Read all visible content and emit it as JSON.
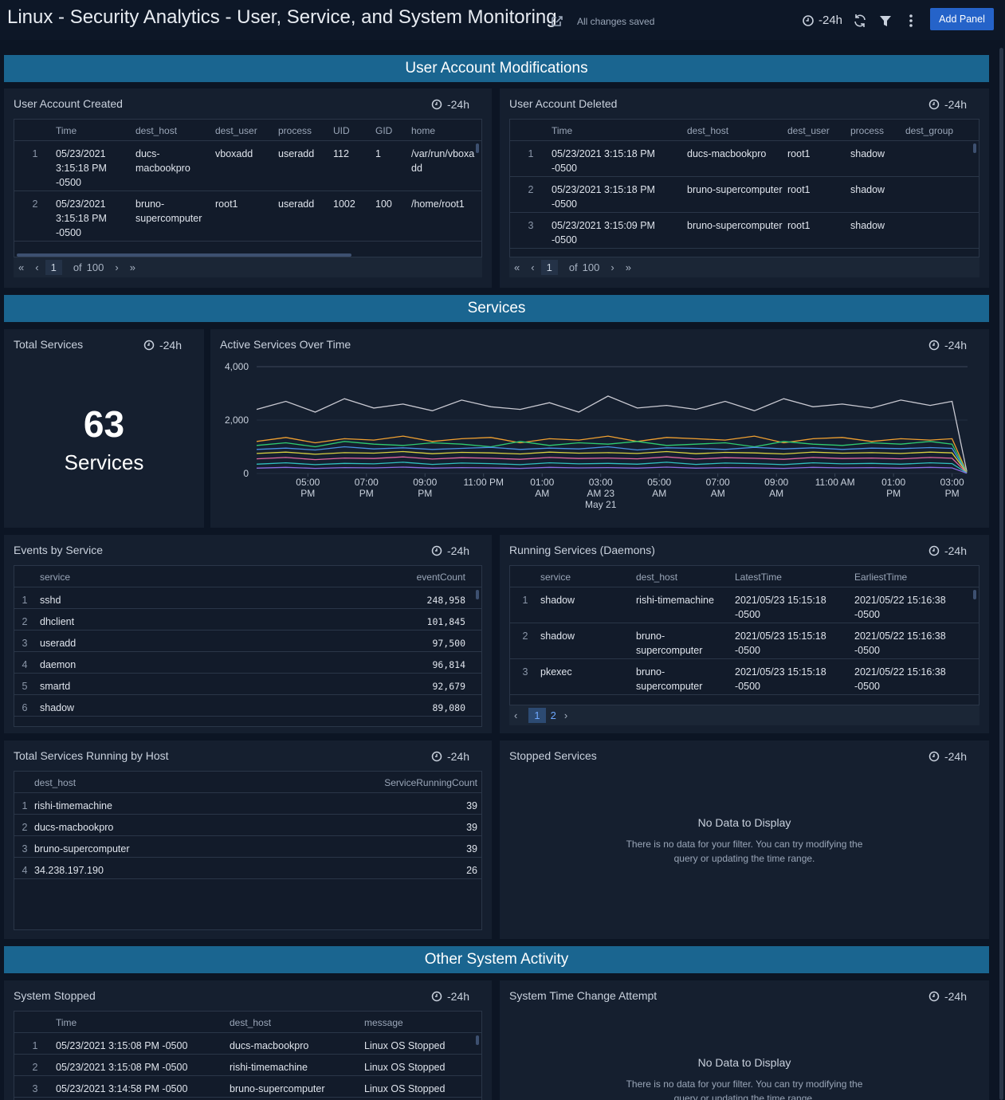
{
  "header": {
    "title": "Linux - Security Analytics - User, Service, and System Monitoring",
    "status": "All changes saved",
    "time_range": "-24h",
    "add_panel": "Add Panel"
  },
  "sections": [
    "User Account Modifications",
    "Services",
    "Other System Activity"
  ],
  "panels": {
    "user_created": {
      "title": "User Account Created",
      "time_range": "-24h",
      "columns": [
        "Time",
        "dest_host",
        "dest_user",
        "process",
        "UID",
        "GID",
        "home"
      ],
      "rows": [
        [
          1,
          "05/23/2021 3:15:18 PM -0500",
          "ducs-macbookpro",
          "vboxadd",
          "useradd",
          "112",
          "1",
          "/var/run/vboxadd"
        ],
        [
          2,
          "05/23/2021 3:15:18 PM -0500",
          "bruno-supercomputer",
          "root1",
          "useradd",
          "1002",
          "100",
          "/home/root1"
        ]
      ],
      "pager": {
        "page": 1,
        "of": "of",
        "total": 100
      }
    },
    "user_deleted": {
      "title": "User Account Deleted",
      "time_range": "-24h",
      "columns": [
        "Time",
        "dest_host",
        "dest_user",
        "process",
        "dest_group"
      ],
      "rows": [
        [
          1,
          "05/23/2021 3:15:18 PM -0500",
          "ducs-macbookpro",
          "root1",
          "shadow",
          ""
        ],
        [
          2,
          "05/23/2021 3:15:18 PM -0500",
          "bruno-supercomputer",
          "root1",
          "shadow",
          ""
        ],
        [
          3,
          "05/23/2021 3:15:09 PM -0500",
          "bruno-supercomputer",
          "root1",
          "shadow",
          ""
        ]
      ],
      "pager": {
        "page": 1,
        "of": "of",
        "total": 100
      }
    },
    "total_services": {
      "title": "Total Services",
      "time_range": "-24h",
      "value": 63,
      "unit": "Services"
    },
    "events_by_service": {
      "title": "Events by Service",
      "time_range": "-24h",
      "columns": [
        "service",
        "eventCount"
      ],
      "rows": [
        [
          1,
          "sshd",
          "248,958"
        ],
        [
          2,
          "dhclient",
          "101,845"
        ],
        [
          3,
          "useradd",
          "97,500"
        ],
        [
          4,
          "daemon",
          "96,814"
        ],
        [
          5,
          "smartd",
          "92,679"
        ],
        [
          6,
          "shadow",
          "89,080"
        ]
      ]
    },
    "running_services": {
      "title": "Running Services (Daemons)",
      "time_range": "-24h",
      "columns": [
        "service",
        "dest_host",
        "LatestTime",
        "EarliestTime"
      ],
      "rows": [
        [
          1,
          "shadow",
          "rishi-timemachine",
          "2021/05/23 15:15:18 -0500",
          "2021/05/22 15:16:38 -0500"
        ],
        [
          2,
          "shadow",
          "bruno-supercomputer",
          "2021/05/23 15:15:18 -0500",
          "2021/05/22 15:16:38 -0500"
        ],
        [
          3,
          "pkexec",
          "bruno-supercomputer",
          "2021/05/23 15:15:18 -0500",
          "2021/05/22 15:16:38 -0500"
        ]
      ],
      "pages": [
        1,
        2
      ]
    },
    "services_by_host": {
      "title": "Total Services Running by Host",
      "time_range": "-24h",
      "columns": [
        "dest_host",
        "ServiceRunningCount"
      ],
      "rows": [
        [
          1,
          "rishi-timemachine",
          "39"
        ],
        [
          2,
          "ducs-macbookpro",
          "39"
        ],
        [
          3,
          "bruno-supercomputer",
          "39"
        ],
        [
          4,
          "34.238.197.190",
          "26"
        ]
      ]
    },
    "stopped_services": {
      "title": "Stopped Services",
      "time_range": "-24h",
      "empty_title": "No Data to Display",
      "empty_message": "There is no data for your filter. You can try modifying the query or updating the time range."
    },
    "system_stopped": {
      "title": "System Stopped",
      "time_range": "-24h",
      "columns": [
        "Time",
        "dest_host",
        "message"
      ],
      "rows": [
        [
          1,
          "05/23/2021 3:15:08 PM -0500",
          "ducs-macbookpro",
          "Linux OS Stopped"
        ],
        [
          2,
          "05/23/2021 3:15:08 PM -0500",
          "rishi-timemachine",
          "Linux OS Stopped"
        ],
        [
          3,
          "05/23/2021 3:14:58 PM -0500",
          "bruno-supercomputer",
          "Linux OS Stopped"
        ]
      ]
    },
    "time_change": {
      "title": "System Time Change Attempt",
      "time_range": "-24h",
      "empty_title": "No Data to Display",
      "empty_message": "There is no data for your filter. You can try modifying the query or updating the time range."
    }
  },
  "chart_data": {
    "type": "line",
    "title": "Active Services Over Time",
    "time_range": "-24h",
    "x": [
      15.25,
      16.25,
      17.25,
      18.25,
      19.25,
      20.25,
      21.25,
      22.25,
      23.25,
      24.25,
      25.25,
      26.25,
      27.25,
      28.25,
      29.25,
      30.25,
      31.25,
      32.25,
      33.25,
      34.25,
      35.25,
      36.25,
      37.25,
      38.25,
      39.0,
      39.5
    ],
    "xlim": [
      15.25,
      39.5
    ],
    "xticks": [
      {
        "value": 17,
        "label": "05:00\nPM"
      },
      {
        "value": 19,
        "label": "07:00\nPM"
      },
      {
        "value": 21,
        "label": "09:00\nPM"
      },
      {
        "value": 23,
        "label": "11:00 PM"
      },
      {
        "value": 25,
        "label": "01:00\nAM"
      },
      {
        "value": 27,
        "label": "03:00\nAM 23\nMay 21"
      },
      {
        "value": 29,
        "label": "05:00\nAM"
      },
      {
        "value": 31,
        "label": "07:00\nAM"
      },
      {
        "value": 33,
        "label": "09:00\nAM"
      },
      {
        "value": 35,
        "label": "11:00 AM"
      },
      {
        "value": 37,
        "label": "01:00\nPM"
      },
      {
        "value": 39,
        "label": "03:00\nPM"
      }
    ],
    "ylim": [
      0,
      4000
    ],
    "yticks": [
      0,
      {
        "value": 2000,
        "label": "2,000"
      },
      {
        "value": 4000,
        "label": "4,000"
      }
    ],
    "grid": true,
    "series": [
      {
        "color": "#c9c9d2",
        "values": [
          2400,
          2700,
          2300,
          2800,
          2450,
          2600,
          2350,
          2750,
          2500,
          2400,
          2650,
          2300,
          2900,
          2450,
          2550,
          2400,
          2700,
          2350,
          2800,
          2500,
          2600,
          2450,
          2750,
          2550,
          2700,
          80
        ]
      },
      {
        "color": "#f0a030",
        "values": [
          1200,
          1350,
          1150,
          1300,
          1250,
          1400,
          1200,
          1300,
          1350,
          1150,
          1300,
          1250,
          1400,
          1200,
          1350,
          1300,
          1250,
          1400,
          1150,
          1300,
          1350,
          1200,
          1300,
          1250,
          1300,
          50
        ]
      },
      {
        "color": "#2ecc71",
        "values": [
          1050,
          1150,
          1000,
          1200,
          1100,
          1050,
          1150,
          1100,
          1000,
          1200,
          1050,
          1150,
          1100,
          1200,
          1050,
          1100,
          1150,
          1000,
          1200,
          1100,
          1050,
          1150,
          1100,
          1200,
          1100,
          40
        ]
      },
      {
        "color": "#4a90e2",
        "values": [
          900,
          950,
          880,
          1000,
          920,
          960,
          900,
          940,
          980,
          900,
          950,
          920,
          1000,
          880,
          960,
          940,
          900,
          980,
          920,
          960,
          900,
          950,
          930,
          970,
          940,
          30
        ]
      },
      {
        "color": "#d8d040",
        "values": [
          750,
          800,
          720,
          780,
          760,
          820,
          740,
          790,
          770,
          730,
          800,
          760,
          780,
          750,
          820,
          740,
          790,
          770,
          730,
          800,
          760,
          780,
          750,
          800,
          770,
          30
        ]
      },
      {
        "color": "#e066a0",
        "values": [
          550,
          600,
          520,
          580,
          560,
          620,
          540,
          590,
          570,
          530,
          600,
          560,
          580,
          550,
          620,
          540,
          590,
          570,
          530,
          600,
          560,
          580,
          550,
          600,
          570,
          20
        ]
      },
      {
        "color": "#30c0c0",
        "values": [
          350,
          400,
          330,
          380,
          360,
          420,
          340,
          390,
          370,
          330,
          400,
          360,
          380,
          350,
          420,
          340,
          390,
          370,
          330,
          400,
          360,
          380,
          350,
          400,
          370,
          20
        ]
      },
      {
        "color": "#8a6de0",
        "values": [
          200,
          230,
          190,
          220,
          210,
          240,
          200,
          220,
          210,
          190,
          230,
          210,
          220,
          200,
          240,
          200,
          220,
          210,
          190,
          230,
          210,
          220,
          200,
          230,
          210,
          10
        ]
      }
    ]
  }
}
